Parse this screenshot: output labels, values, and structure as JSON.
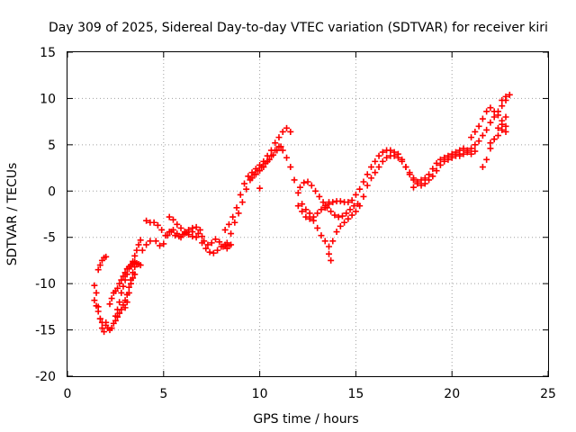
{
  "chart_data": {
    "type": "scatter",
    "title": "Day 309 of 2025, Sidereal Day-to-day VTEC variation (SDTVAR) for receiver kiri",
    "xlabel": "GPS time / hours",
    "ylabel": "SDTVAR / TECUs",
    "xlim": [
      0,
      25
    ],
    "ylim": [
      -20,
      15
    ],
    "grid": true,
    "marker": "+",
    "marker_color": "#ff0000",
    "xticks": [
      0,
      5,
      10,
      15,
      20,
      25
    ],
    "yticks": [
      -20,
      -15,
      -10,
      -5,
      0,
      5,
      10,
      15
    ],
    "xtick_labels": [
      "0",
      "5",
      "10",
      "15",
      "20",
      "25"
    ],
    "ytick_labels": [
      "-20",
      "-15",
      "-10",
      "-5",
      "0",
      "5",
      "10",
      "15"
    ],
    "series": [
      {
        "x": [
          1.4,
          1.5,
          1.6,
          1.7,
          1.8,
          1.9,
          2.0
        ],
        "y": [
          -10.2,
          -11.0,
          -12.5,
          -13.8,
          -14.8,
          -15.2,
          -14.5
        ]
      },
      {
        "x": [
          1.4,
          1.5,
          1.6,
          1.7,
          1.8
        ],
        "y": [
          -11.8,
          -12.4,
          -13.0,
          -13.8,
          -14.2
        ]
      },
      {
        "x": [
          1.6,
          1.7,
          1.8,
          1.9,
          2.0
        ],
        "y": [
          -8.5,
          -8.0,
          -7.5,
          -7.2,
          -7.1
        ]
      },
      {
        "x": [
          2.0,
          2.1,
          2.2,
          2.3,
          2.4,
          2.5,
          2.6,
          2.7,
          2.8,
          2.9,
          3.0,
          3.1,
          3.2,
          3.3,
          3.4,
          3.5,
          3.6,
          3.7,
          3.8
        ],
        "y": [
          -14.2,
          -14.8,
          -15.0,
          -14.8,
          -14.3,
          -13.5,
          -12.8,
          -12.0,
          -11.0,
          -10.3,
          -9.6,
          -9.0,
          -8.4,
          -8.0,
          -7.6,
          -7.0,
          -6.4,
          -5.8,
          -5.3
        ]
      },
      {
        "x": [
          2.2,
          2.3,
          2.4,
          2.5,
          2.6,
          2.7,
          2.8,
          2.9,
          3.0,
          3.1,
          3.2,
          3.3,
          3.4,
          3.5,
          3.6,
          3.7,
          3.8
        ],
        "y": [
          -12.2,
          -11.6,
          -11.0,
          -10.8,
          -10.5,
          -10.0,
          -9.6,
          -9.2,
          -8.8,
          -8.4,
          -8.2,
          -8.0,
          -7.8,
          -7.7,
          -7.8,
          -7.9,
          -8.0
        ]
      },
      {
        "x": [
          2.5,
          2.6,
          2.7,
          2.8,
          2.9,
          3.0,
          3.1,
          3.2,
          3.3,
          3.4,
          3.5
        ],
        "y": [
          -14.0,
          -13.6,
          -13.2,
          -12.8,
          -12.3,
          -11.8,
          -11.2,
          -10.4,
          -9.6,
          -8.8,
          -8.2
        ]
      },
      {
        "x": [
          3.0,
          3.1,
          3.2,
          3.3,
          3.4,
          3.5
        ],
        "y": [
          -12.6,
          -12.0,
          -11.0,
          -10.0,
          -9.4,
          -9.0
        ]
      },
      {
        "x": [
          4.1,
          4.3,
          4.5,
          4.7,
          4.9,
          5.1,
          5.3,
          5.5,
          5.7,
          5.9,
          6.1,
          6.3,
          6.5,
          6.7,
          6.9
        ],
        "y": [
          -3.2,
          -3.4,
          -3.4,
          -3.7,
          -4.2,
          -4.8,
          -4.4,
          -4.2,
          -4.6,
          -5.0,
          -4.6,
          -4.2,
          -4.0,
          -3.9,
          -4.2
        ]
      },
      {
        "x": [
          3.9,
          4.1,
          4.3,
          4.6,
          4.8,
          5.0,
          5.2,
          5.4,
          5.6,
          5.8,
          6.0,
          6.2,
          6.5,
          6.8,
          7.0
        ],
        "y": [
          -6.4,
          -5.8,
          -5.4,
          -5.4,
          -5.9,
          -5.7,
          -4.8,
          -4.4,
          -4.8,
          -4.9,
          -4.7,
          -4.5,
          -4.4,
          -4.6,
          -4.9
        ]
      },
      {
        "x": [
          5.3,
          5.5,
          5.7,
          5.9,
          6.1,
          6.3,
          6.5,
          6.7
        ],
        "y": [
          -2.8,
          -3.1,
          -3.6,
          -4.0,
          -4.4,
          -4.7,
          -4.9,
          -5.0
        ]
      },
      {
        "x": [
          7.0,
          7.2,
          7.4,
          7.6,
          7.8,
          8.0,
          8.2,
          8.4
        ],
        "y": [
          -5.6,
          -6.2,
          -6.6,
          -6.7,
          -6.4,
          -6.0,
          -5.8,
          -5.9
        ]
      },
      {
        "x": [
          7.1,
          7.3,
          7.5,
          7.7,
          7.9,
          8.1,
          8.3,
          8.5
        ],
        "y": [
          -5.4,
          -5.8,
          -5.6,
          -5.2,
          -5.5,
          -6.0,
          -6.2,
          -5.8
        ]
      },
      {
        "x": [
          8.2,
          8.4,
          8.6,
          8.8,
          9.0,
          9.2,
          9.4,
          9.6,
          9.8,
          10.0,
          10.2,
          10.4,
          10.6,
          10.8,
          11.0,
          11.2,
          11.4,
          11.6
        ],
        "y": [
          -4.2,
          -3.6,
          -2.8,
          -1.8,
          -0.4,
          0.8,
          1.6,
          2.0,
          2.4,
          2.8,
          3.2,
          3.8,
          4.4,
          5.2,
          5.8,
          6.4,
          6.8,
          6.4
        ]
      },
      {
        "x": [
          8.3,
          8.5,
          8.7,
          8.9,
          9.1,
          9.3,
          9.5,
          9.7,
          9.9,
          10.1,
          10.3,
          10.5,
          10.7,
          10.9,
          11.1
        ],
        "y": [
          -5.6,
          -4.6,
          -3.4,
          -2.4,
          -1.2,
          0.2,
          1.2,
          1.8,
          2.2,
          2.6,
          3.0,
          3.4,
          3.9,
          4.4,
          4.8
        ]
      },
      {
        "x": [
          9.6,
          9.8,
          10.0,
          10.2,
          10.4,
          10.6,
          10.8,
          11.0,
          11.2,
          11.4,
          11.6,
          11.8,
          12.0,
          12.2,
          12.4,
          12.6,
          12.8,
          13.0,
          13.2,
          13.4,
          13.6
        ],
        "y": [
          1.4,
          1.8,
          2.2,
          2.6,
          3.2,
          3.8,
          4.4,
          4.8,
          4.4,
          3.6,
          2.6,
          1.2,
          -0.2,
          -1.4,
          -2.0,
          -2.4,
          -3.2,
          -4.0,
          -4.8,
          -5.4,
          -6.0
        ]
      },
      {
        "x": [
          10.0
        ],
        "y": [
          0.3
        ]
      },
      {
        "x": [
          12.1,
          12.3,
          12.5,
          12.7,
          12.9,
          13.1,
          13.3,
          13.5,
          13.7,
          13.9,
          14.1,
          14.3,
          14.5,
          14.7,
          14.9,
          15.1
        ],
        "y": [
          0.4,
          0.9,
          1.0,
          0.6,
          0.0,
          -0.6,
          -1.2,
          -1.8,
          -2.2,
          -2.6,
          -2.8,
          -2.7,
          -2.4,
          -2.0,
          -1.6,
          -1.4
        ]
      },
      {
        "x": [
          12.0,
          12.2,
          12.4,
          12.6,
          12.8,
          13.0,
          13.2,
          13.4,
          13.6
        ],
        "y": [
          -1.6,
          -2.2,
          -2.8,
          -3.0,
          -2.8,
          -2.4,
          -2.0,
          -1.6,
          -1.2
        ]
      },
      {
        "x": [
          13.4,
          13.6,
          13.8,
          14.0,
          14.2,
          14.4,
          14.6,
          14.8,
          15.0,
          15.2,
          15.4,
          15.6,
          15.8,
          16.0,
          16.2,
          16.4,
          16.6,
          16.8,
          17.0,
          17.2,
          17.4,
          17.6,
          17.8,
          18.0
        ],
        "y": [
          -1.8,
          -1.4,
          -1.2,
          -1.1,
          -1.1,
          -1.2,
          -1.2,
          -1.0,
          -0.4,
          0.2,
          1.0,
          1.8,
          2.6,
          3.2,
          3.8,
          4.2,
          4.4,
          4.4,
          4.2,
          4.0,
          3.4,
          2.6,
          1.8,
          1.2
        ]
      },
      {
        "x": [
          13.6,
          13.8,
          14.0,
          14.2,
          14.4,
          14.6,
          14.8,
          15.0,
          15.2,
          15.4,
          15.6,
          15.8,
          16.0,
          16.2,
          16.4,
          16.6,
          16.8,
          17.0,
          17.2,
          17.4,
          17.6,
          17.8,
          18.0,
          18.2
        ],
        "y": [
          -6.8,
          -5.4,
          -4.4,
          -3.8,
          -3.4,
          -3.0,
          -2.6,
          -2.2,
          -1.6,
          -0.6,
          0.6,
          1.4,
          2.0,
          2.6,
          3.2,
          3.6,
          3.8,
          3.8,
          3.6,
          3.2,
          2.6,
          2.0,
          1.4,
          0.8
        ]
      },
      {
        "x": [
          13.7
        ],
        "y": [
          -7.5
        ]
      },
      {
        "x": [
          18.0,
          18.2,
          18.4,
          18.6,
          18.8,
          19.0,
          19.2,
          19.4,
          19.6,
          19.8,
          20.0,
          20.2,
          20.4,
          20.6,
          20.8,
          21.0,
          21.2,
          21.4,
          21.6,
          21.8,
          22.0,
          22.2,
          22.4,
          22.6,
          22.8
        ],
        "y": [
          0.4,
          1.0,
          1.2,
          1.4,
          1.8,
          2.4,
          3.0,
          3.4,
          3.6,
          3.8,
          4.0,
          4.2,
          4.4,
          4.6,
          4.4,
          4.6,
          5.0,
          5.4,
          6.0,
          6.6,
          7.4,
          8.0,
          8.6,
          9.2,
          9.8
        ]
      },
      {
        "x": [
          18.4,
          18.6,
          18.8,
          19.0,
          19.2,
          19.4,
          19.6,
          19.8,
          20.0,
          20.2,
          20.4
        ],
        "y": [
          0.6,
          0.8,
          1.2,
          1.6,
          2.2,
          2.8,
          3.2,
          3.4,
          3.6,
          3.8,
          4.0
        ]
      },
      {
        "x": [
          21.6,
          21.8,
          22.0,
          22.2,
          22.4,
          22.6,
          22.8
        ],
        "y": [
          2.6,
          3.4,
          4.6,
          5.6,
          6.8,
          7.6,
          8.0
        ]
      },
      {
        "x": [
          21.0,
          21.2,
          21.4,
          21.6,
          21.8,
          22.0,
          22.2,
          22.4,
          22.6,
          22.8
        ],
        "y": [
          5.8,
          6.4,
          7.0,
          7.8,
          8.6,
          9.0,
          8.6,
          8.2,
          7.2,
          6.4
        ]
      },
      {
        "x": [
          22.0,
          22.2,
          22.4,
          22.6,
          22.8
        ],
        "y": [
          5.2,
          5.6,
          6.0,
          6.6,
          7.0
        ]
      },
      {
        "x": [
          22.6,
          22.8,
          23.0
        ],
        "y": [
          9.8,
          10.2,
          10.4
        ]
      },
      {
        "x": [
          20.4,
          20.6,
          20.8,
          21.0,
          21.2
        ],
        "y": [
          3.8,
          4.0,
          4.2,
          4.0,
          4.3
        ]
      }
    ]
  }
}
